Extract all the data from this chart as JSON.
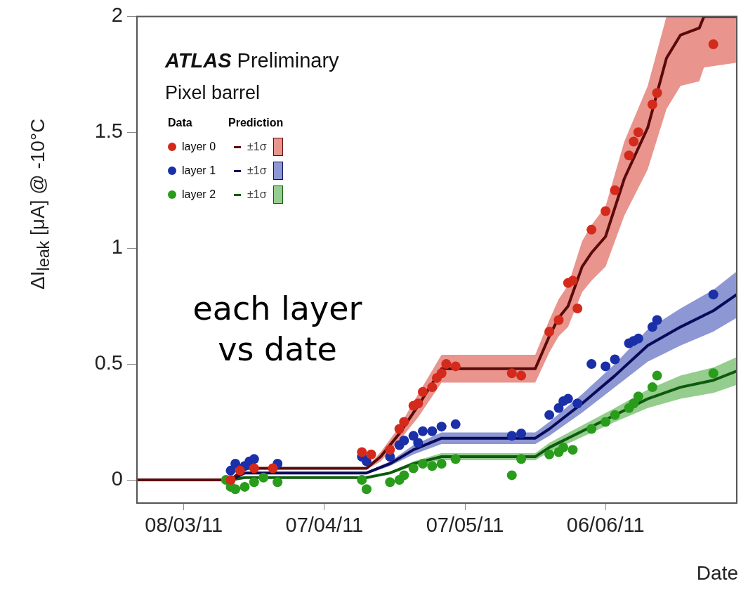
{
  "chart_data": {
    "type": "scatter",
    "xlabel": "Date",
    "ylabel": "ΔI$_{leak}$ [μA] @ -10°C",
    "annotations": [
      "ATLAS Preliminary",
      "Pixel barrel",
      "Data",
      "Prediction",
      "each layer vs date"
    ],
    "xlim": [
      "2011-02-26",
      "2011-07-04"
    ],
    "xticks": [
      {
        "value": "2011-03-08",
        "label": "08/03/11"
      },
      {
        "value": "2011-04-07",
        "label": "07/04/11"
      },
      {
        "value": "2011-05-07",
        "label": "07/05/11"
      },
      {
        "value": "2011-06-06",
        "label": "06/06/11"
      }
    ],
    "ylim": [
      -0.1,
      2
    ],
    "yticks": [
      0,
      0.5,
      1,
      1.5,
      2
    ],
    "legend": "top left",
    "marker": "circle",
    "line_style": "solid",
    "series": [
      {
        "name": "layer 0",
        "color": "#d42a1c",
        "x": [
          "2011-03-18",
          "2011-03-20",
          "2011-03-23",
          "2011-03-27",
          "2011-04-15",
          "2011-04-17",
          "2011-04-21",
          "2011-04-23",
          "2011-04-24",
          "2011-04-26",
          "2011-04-27",
          "2011-04-28",
          "2011-04-30",
          "2011-05-01",
          "2011-05-02",
          "2011-05-03",
          "2011-05-05",
          "2011-05-17",
          "2011-05-19",
          "2011-05-25",
          "2011-05-27",
          "2011-05-29",
          "2011-05-30",
          "2011-05-31",
          "2011-06-03",
          "2011-06-06",
          "2011-06-08",
          "2011-06-11",
          "2011-06-12",
          "2011-06-13",
          "2011-06-16",
          "2011-06-17",
          "2011-06-29"
        ],
        "values": [
          0.0,
          0.04,
          0.05,
          0.05,
          0.12,
          0.11,
          0.13,
          0.22,
          0.25,
          0.32,
          0.33,
          0.38,
          0.4,
          0.44,
          0.46,
          0.5,
          0.49,
          0.46,
          0.45,
          0.64,
          0.69,
          0.85,
          0.86,
          0.74,
          1.08,
          1.16,
          1.25,
          1.4,
          1.46,
          1.5,
          1.62,
          1.67,
          1.88
        ]
      },
      {
        "name": "layer 1",
        "color": "#1a2fa8",
        "x": [
          "2011-03-18",
          "2011-03-19",
          "2011-03-21",
          "2011-03-22",
          "2011-03-23",
          "2011-03-28",
          "2011-04-15",
          "2011-04-16",
          "2011-04-21",
          "2011-04-23",
          "2011-04-24",
          "2011-04-26",
          "2011-04-27",
          "2011-04-28",
          "2011-04-30",
          "2011-05-02",
          "2011-05-05",
          "2011-05-17",
          "2011-05-19",
          "2011-05-25",
          "2011-05-27",
          "2011-05-28",
          "2011-05-29",
          "2011-05-31",
          "2011-06-03",
          "2011-06-06",
          "2011-06-08",
          "2011-06-11",
          "2011-06-12",
          "2011-06-13",
          "2011-06-16",
          "2011-06-17",
          "2011-06-29"
        ],
        "values": [
          0.04,
          0.07,
          0.06,
          0.08,
          0.09,
          0.07,
          0.1,
          0.08,
          0.1,
          0.15,
          0.17,
          0.19,
          0.16,
          0.21,
          0.21,
          0.23,
          0.24,
          0.19,
          0.2,
          0.28,
          0.31,
          0.34,
          0.35,
          0.33,
          0.5,
          0.49,
          0.52,
          0.59,
          0.6,
          0.61,
          0.66,
          0.69,
          0.8
        ]
      },
      {
        "name": "layer 2",
        "color": "#2a9c1c",
        "x": [
          "2011-03-17",
          "2011-03-18",
          "2011-03-19",
          "2011-03-21",
          "2011-03-23",
          "2011-03-25",
          "2011-03-28",
          "2011-04-15",
          "2011-04-16",
          "2011-04-21",
          "2011-04-23",
          "2011-04-24",
          "2011-04-26",
          "2011-04-28",
          "2011-04-30",
          "2011-05-02",
          "2011-05-05",
          "2011-05-17",
          "2011-05-19",
          "2011-05-25",
          "2011-05-27",
          "2011-05-28",
          "2011-05-30",
          "2011-06-03",
          "2011-06-06",
          "2011-06-08",
          "2011-06-11",
          "2011-06-12",
          "2011-06-13",
          "2011-06-16",
          "2011-06-17",
          "2011-06-29"
        ],
        "values": [
          0.0,
          -0.03,
          -0.04,
          -0.03,
          -0.01,
          0.01,
          -0.01,
          0.0,
          -0.04,
          -0.01,
          0.0,
          0.02,
          0.05,
          0.07,
          0.06,
          0.07,
          0.09,
          0.02,
          0.09,
          0.11,
          0.12,
          0.14,
          0.13,
          0.22,
          0.25,
          0.28,
          0.31,
          0.33,
          0.36,
          0.4,
          0.45,
          0.46
        ]
      },
      {
        "name": "±1σ",
        "type": "line",
        "marker": "none",
        "color": "#5a0a0a",
        "x": [
          "2011-02-26",
          "2011-03-18",
          "2011-03-21",
          "2011-04-16",
          "2011-04-19",
          "2011-04-23",
          "2011-04-27",
          "2011-05-02",
          "2011-05-22",
          "2011-05-25",
          "2011-05-27",
          "2011-05-29",
          "2011-06-01",
          "2011-06-03",
          "2011-06-06",
          "2011-06-10",
          "2011-06-15",
          "2011-06-19",
          "2011-06-22",
          "2011-06-26",
          "2011-06-27",
          "2011-07-04"
        ],
        "values": [
          0,
          0,
          0.05,
          0.05,
          0.1,
          0.2,
          0.32,
          0.48,
          0.48,
          0.62,
          0.7,
          0.75,
          0.92,
          0.98,
          1.05,
          1.3,
          1.52,
          1.82,
          1.92,
          1.95,
          2.0,
          2.0
        ],
        "lower": [
          0,
          0,
          0.045,
          0.045,
          0.08,
          0.17,
          0.27,
          0.42,
          0.42,
          0.55,
          0.62,
          0.66,
          0.81,
          0.86,
          0.92,
          1.14,
          1.34,
          1.6,
          1.7,
          1.72,
          1.78,
          1.8
        ],
        "upper": [
          0,
          0,
          0.055,
          0.055,
          0.12,
          0.23,
          0.37,
          0.54,
          0.54,
          0.69,
          0.78,
          0.84,
          1.03,
          1.1,
          1.18,
          1.46,
          1.7,
          2.0,
          2.0,
          2.0,
          2.0,
          2.0
        ]
      },
      {
        "name": "±1σ",
        "type": "line",
        "marker": "none",
        "color": "#0a0a5a",
        "x": [
          "2011-02-26",
          "2011-03-18",
          "2011-03-21",
          "2011-04-16",
          "2011-04-21",
          "2011-04-26",
          "2011-05-02",
          "2011-05-22",
          "2011-05-25",
          "2011-06-01",
          "2011-06-08",
          "2011-06-15",
          "2011-06-22",
          "2011-06-29",
          "2011-07-04"
        ],
        "values": [
          0,
          0,
          0.03,
          0.03,
          0.07,
          0.13,
          0.18,
          0.18,
          0.22,
          0.33,
          0.45,
          0.58,
          0.66,
          0.73,
          0.8
        ],
        "lower": [
          0,
          0,
          0.025,
          0.025,
          0.06,
          0.11,
          0.155,
          0.155,
          0.19,
          0.29,
          0.4,
          0.51,
          0.58,
          0.64,
          0.7
        ],
        "upper": [
          0,
          0,
          0.035,
          0.035,
          0.08,
          0.15,
          0.205,
          0.205,
          0.25,
          0.37,
          0.5,
          0.65,
          0.74,
          0.82,
          0.9
        ]
      },
      {
        "name": "±1σ",
        "type": "line",
        "marker": "none",
        "color": "#0e5a0e",
        "x": [
          "2011-02-26",
          "2011-03-18",
          "2011-03-21",
          "2011-04-16",
          "2011-04-21",
          "2011-04-26",
          "2011-05-02",
          "2011-05-22",
          "2011-05-25",
          "2011-06-01",
          "2011-06-08",
          "2011-06-15",
          "2011-06-22",
          "2011-06-29",
          "2011-07-04"
        ],
        "values": [
          0,
          0,
          0.01,
          0.01,
          0.03,
          0.07,
          0.1,
          0.1,
          0.14,
          0.21,
          0.28,
          0.35,
          0.4,
          0.43,
          0.47
        ],
        "lower": [
          0,
          0,
          0.007,
          0.007,
          0.025,
          0.06,
          0.085,
          0.085,
          0.12,
          0.185,
          0.25,
          0.31,
          0.35,
          0.375,
          0.41
        ],
        "upper": [
          0,
          0,
          0.013,
          0.013,
          0.035,
          0.08,
          0.115,
          0.115,
          0.16,
          0.235,
          0.31,
          0.39,
          0.45,
          0.485,
          0.53
        ]
      }
    ]
  }
}
